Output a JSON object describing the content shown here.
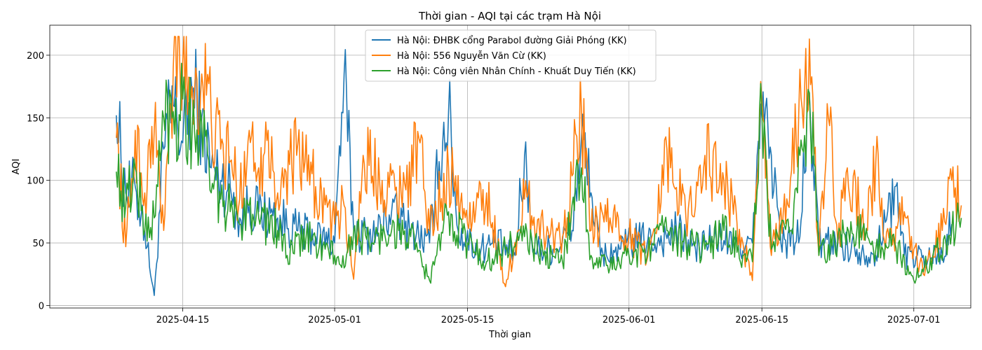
{
  "chart_data": {
    "type": "line",
    "title": "Thời gian - AQI tại các trạm Hà Nội",
    "xlabel": "Thời gian",
    "ylabel": "AQI",
    "x_range": [
      "2025-04-01",
      "2025-07-07"
    ],
    "ylim": [
      -2,
      224
    ],
    "x_ticks": [
      "2025-04-15",
      "2025-05-01",
      "2025-05-15",
      "2025-06-01",
      "2025-06-15",
      "2025-07-01"
    ],
    "y_ticks": [
      0,
      50,
      100,
      150,
      200
    ],
    "grid": true,
    "legend_position": "top-center",
    "series": [
      {
        "name": "Hà Nội: ĐHBK cổng Parabol đường Giải Phóng (KK)",
        "color": "#1f77b4",
        "points": [
          [
            "2025-04-08",
            152
          ],
          [
            "2025-04-09",
            90
          ],
          [
            "2025-04-10",
            95
          ],
          [
            "2025-04-11",
            60
          ],
          [
            "2025-04-12",
            8
          ],
          [
            "2025-04-13",
            125
          ],
          [
            "2025-04-14",
            160
          ],
          [
            "2025-04-15",
            130
          ],
          [
            "2025-04-16",
            170
          ],
          [
            "2025-04-17",
            150
          ],
          [
            "2025-04-18",
            110
          ],
          [
            "2025-04-19",
            100
          ],
          [
            "2025-04-20",
            95
          ],
          [
            "2025-04-21",
            70
          ],
          [
            "2025-04-22",
            80
          ],
          [
            "2025-04-23",
            75
          ],
          [
            "2025-04-25",
            70
          ],
          [
            "2025-04-27",
            60
          ],
          [
            "2025-04-29",
            55
          ],
          [
            "2025-05-01",
            50
          ],
          [
            "2025-05-02",
            185
          ],
          [
            "2025-05-03",
            60
          ],
          [
            "2025-05-05",
            55
          ],
          [
            "2025-05-07",
            75
          ],
          [
            "2025-05-09",
            60
          ],
          [
            "2025-05-11",
            50
          ],
          [
            "2025-05-12",
            115
          ],
          [
            "2025-05-13",
            155
          ],
          [
            "2025-05-14",
            60
          ],
          [
            "2025-05-16",
            45
          ],
          [
            "2025-05-18",
            50
          ],
          [
            "2025-05-20",
            40
          ],
          [
            "2025-05-21",
            120
          ],
          [
            "2025-05-22",
            45
          ],
          [
            "2025-05-24",
            45
          ],
          [
            "2025-05-26",
            60
          ],
          [
            "2025-05-27",
            135
          ],
          [
            "2025-05-28",
            90
          ],
          [
            "2025-05-29",
            40
          ],
          [
            "2025-05-31",
            45
          ],
          [
            "2025-06-02",
            55
          ],
          [
            "2025-06-04",
            50
          ],
          [
            "2025-06-06",
            60
          ],
          [
            "2025-06-08",
            45
          ],
          [
            "2025-06-10",
            55
          ],
          [
            "2025-06-12",
            50
          ],
          [
            "2025-06-14",
            50
          ],
          [
            "2025-06-15",
            150
          ],
          [
            "2025-06-16",
            120
          ],
          [
            "2025-06-17",
            50
          ],
          [
            "2025-06-19",
            55
          ],
          [
            "2025-06-20",
            170
          ],
          [
            "2025-06-21",
            50
          ],
          [
            "2025-06-23",
            50
          ],
          [
            "2025-06-25",
            45
          ],
          [
            "2025-06-27",
            40
          ],
          [
            "2025-06-29",
            95
          ],
          [
            "2025-06-30",
            40
          ],
          [
            "2025-07-02",
            40
          ],
          [
            "2025-07-04",
            40
          ],
          [
            "2025-07-05",
            65
          ]
        ]
      },
      {
        "name": "Hà Nội: 556 Nguyễn Văn Cừ (KK)",
        "color": "#ff7f0e",
        "points": [
          [
            "2025-04-08",
            134
          ],
          [
            "2025-04-09",
            47
          ],
          [
            "2025-04-10",
            140
          ],
          [
            "2025-04-11",
            90
          ],
          [
            "2025-04-12",
            140
          ],
          [
            "2025-04-13",
            60
          ],
          [
            "2025-04-14",
            190
          ],
          [
            "2025-04-15",
            195
          ],
          [
            "2025-04-16",
            175
          ],
          [
            "2025-04-17",
            185
          ],
          [
            "2025-04-18",
            150
          ],
          [
            "2025-04-19",
            125
          ],
          [
            "2025-04-20",
            115
          ],
          [
            "2025-04-21",
            85
          ],
          [
            "2025-04-22",
            140
          ],
          [
            "2025-04-23",
            110
          ],
          [
            "2025-04-24",
            140
          ],
          [
            "2025-04-25",
            90
          ],
          [
            "2025-04-27",
            120
          ],
          [
            "2025-04-29",
            95
          ],
          [
            "2025-05-01",
            65
          ],
          [
            "2025-05-02",
            80
          ],
          [
            "2025-05-03",
            21
          ],
          [
            "2025-05-04",
            120
          ],
          [
            "2025-05-06",
            100
          ],
          [
            "2025-05-08",
            90
          ],
          [
            "2025-05-10",
            130
          ],
          [
            "2025-05-11",
            60
          ],
          [
            "2025-05-13",
            110
          ],
          [
            "2025-05-15",
            65
          ],
          [
            "2025-05-17",
            90
          ],
          [
            "2025-05-19",
            15
          ],
          [
            "2025-05-21",
            85
          ],
          [
            "2025-05-23",
            60
          ],
          [
            "2025-05-25",
            55
          ],
          [
            "2025-05-27",
            155
          ],
          [
            "2025-05-28",
            60
          ],
          [
            "2025-05-30",
            70
          ],
          [
            "2025-06-01",
            55
          ],
          [
            "2025-06-03",
            40
          ],
          [
            "2025-06-05",
            125
          ],
          [
            "2025-06-07",
            70
          ],
          [
            "2025-06-09",
            120
          ],
          [
            "2025-06-11",
            100
          ],
          [
            "2025-06-13",
            50
          ],
          [
            "2025-06-14",
            20
          ],
          [
            "2025-06-15",
            165
          ],
          [
            "2025-06-16",
            40
          ],
          [
            "2025-06-18",
            100
          ],
          [
            "2025-06-20",
            213
          ],
          [
            "2025-06-21",
            40
          ],
          [
            "2025-06-22",
            150
          ],
          [
            "2025-06-23",
            50
          ],
          [
            "2025-06-24",
            110
          ],
          [
            "2025-06-26",
            60
          ],
          [
            "2025-06-27",
            115
          ],
          [
            "2025-06-28",
            45
          ],
          [
            "2025-06-30",
            75
          ],
          [
            "2025-07-01",
            45
          ],
          [
            "2025-07-02",
            25
          ],
          [
            "2025-07-04",
            60
          ],
          [
            "2025-07-05",
            100
          ],
          [
            "2025-07-06",
            80
          ]
        ]
      },
      {
        "name": "Hà Nội: Công viên Nhân Chính - Khuất Duy Tiến (KK)",
        "color": "#2ca02c",
        "points": [
          [
            "2025-04-08",
            107
          ],
          [
            "2025-04-09",
            80
          ],
          [
            "2025-04-10",
            110
          ],
          [
            "2025-04-11",
            60
          ],
          [
            "2025-04-12",
            70
          ],
          [
            "2025-04-13",
            150
          ],
          [
            "2025-04-14",
            155
          ],
          [
            "2025-04-15",
            165
          ],
          [
            "2025-04-16",
            140
          ],
          [
            "2025-04-17",
            145
          ],
          [
            "2025-04-18",
            90
          ],
          [
            "2025-04-19",
            85
          ],
          [
            "2025-04-20",
            75
          ],
          [
            "2025-04-21",
            65
          ],
          [
            "2025-04-22",
            80
          ],
          [
            "2025-04-23",
            70
          ],
          [
            "2025-04-25",
            60
          ],
          [
            "2025-04-26",
            40
          ],
          [
            "2025-04-28",
            55
          ],
          [
            "2025-04-30",
            45
          ],
          [
            "2025-05-01",
            40
          ],
          [
            "2025-05-02",
            30
          ],
          [
            "2025-05-03",
            60
          ],
          [
            "2025-05-05",
            50
          ],
          [
            "2025-05-07",
            60
          ],
          [
            "2025-05-09",
            55
          ],
          [
            "2025-05-11",
            20
          ],
          [
            "2025-05-13",
            75
          ],
          [
            "2025-05-15",
            50
          ],
          [
            "2025-05-17",
            35
          ],
          [
            "2025-05-19",
            45
          ],
          [
            "2025-05-21",
            55
          ],
          [
            "2025-05-23",
            40
          ],
          [
            "2025-05-25",
            35
          ],
          [
            "2025-05-26",
            80
          ],
          [
            "2025-05-27",
            110
          ],
          [
            "2025-05-28",
            40
          ],
          [
            "2025-05-30",
            30
          ],
          [
            "2025-06-01",
            40
          ],
          [
            "2025-06-03",
            45
          ],
          [
            "2025-06-05",
            60
          ],
          [
            "2025-06-07",
            50
          ],
          [
            "2025-06-09",
            45
          ],
          [
            "2025-06-11",
            60
          ],
          [
            "2025-06-13",
            40
          ],
          [
            "2025-06-14",
            35
          ],
          [
            "2025-06-15",
            155
          ],
          [
            "2025-06-16",
            45
          ],
          [
            "2025-06-18",
            60
          ],
          [
            "2025-06-19",
            120
          ],
          [
            "2025-06-20",
            170
          ],
          [
            "2025-06-21",
            40
          ],
          [
            "2025-06-23",
            55
          ],
          [
            "2025-06-25",
            60
          ],
          [
            "2025-06-27",
            45
          ],
          [
            "2025-06-29",
            50
          ],
          [
            "2025-07-01",
            20
          ],
          [
            "2025-07-03",
            40
          ],
          [
            "2025-07-05",
            60
          ],
          [
            "2025-07-06",
            70
          ]
        ]
      }
    ]
  }
}
